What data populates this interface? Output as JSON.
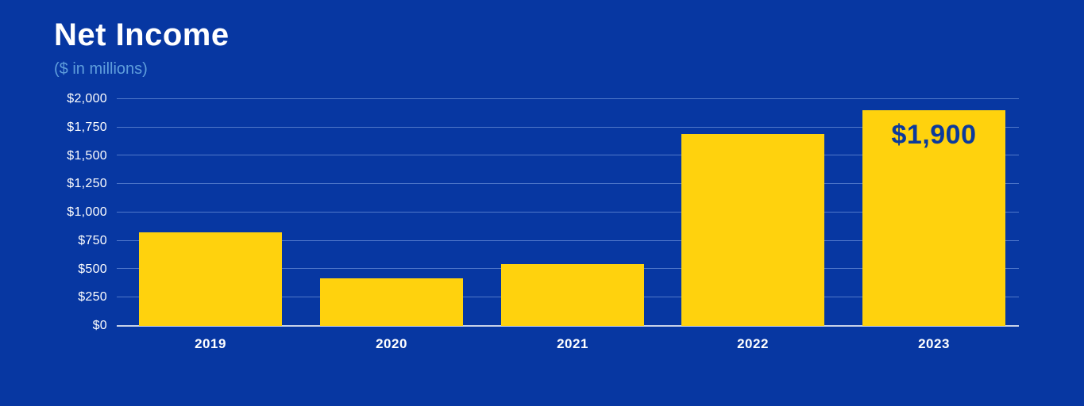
{
  "header": {
    "title": "Net Income",
    "subtitle": "($ in millions)"
  },
  "colors": {
    "background": "#0737A2",
    "bar": "#FFD20D",
    "gridline": "rgba(140,175,235,0.55)",
    "baseline": "#C7D2E8",
    "title_text": "#FFFFFF",
    "subtitle_text": "#5F9EDC",
    "tick_text": "#FFFFFF",
    "annotation_text": "#0B3A9C"
  },
  "chart_data": {
    "type": "bar",
    "title": "Net Income",
    "subtitle": "($ in millions)",
    "xlabel": "",
    "ylabel": "$ in millions",
    "categories": [
      "2019",
      "2020",
      "2021",
      "2022",
      "2023"
    ],
    "values": [
      825,
      420,
      545,
      1690,
      1900
    ],
    "ylim": [
      0,
      2000
    ],
    "ytick_step": 250,
    "ytick_labels": [
      "$0",
      "$250",
      "$500",
      "$750",
      "$1,000",
      "$1,250",
      "$1,500",
      "$1,750",
      "$2,000"
    ],
    "annotations": [
      {
        "category": "2023",
        "text": "$1,900"
      }
    ],
    "grid": true,
    "legend": false
  }
}
